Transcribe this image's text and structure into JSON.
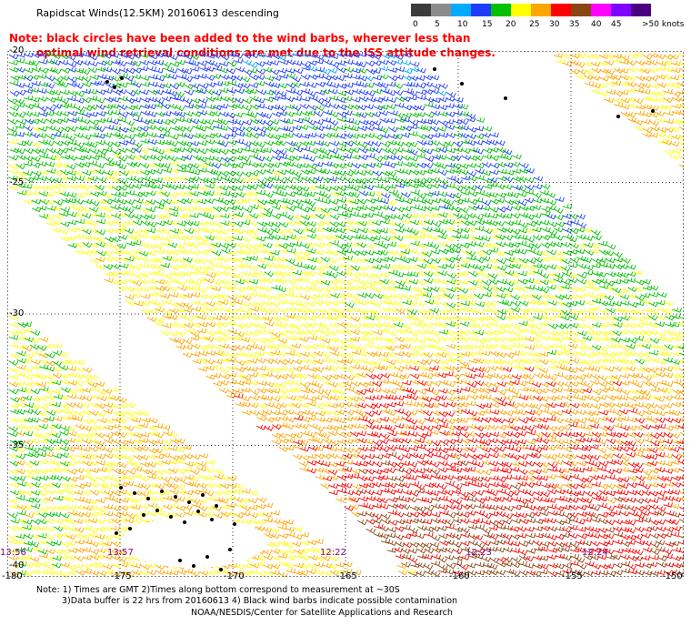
{
  "title": "Rapidscat Winds(12.5KM) 20160613 descending",
  "note": {
    "line1": "Note: black circles have been added to the wind barbs, wherever less than",
    "line2": "optimal wind retrieval conditions are met due to the ISS attitude changes."
  },
  "legend": {
    "colors": [
      "#3c3c3c",
      "#8c8c8c",
      "#00aaff",
      "#1e3cff",
      "#00c000",
      "#ffff00",
      "#ffa500",
      "#ff0000",
      "#8b4513",
      "#ff00ff",
      "#7f00ff",
      "#4b0082"
    ],
    "labels": [
      "0",
      "5",
      "10",
      "15",
      "20",
      "25",
      "30",
      "35",
      "40",
      "45",
      ">50 knots"
    ]
  },
  "axes": {
    "lat_labels": [
      "-20",
      "-25",
      "-30",
      "-35",
      "-40"
    ],
    "lon_labels": [
      "-180",
      "-175",
      "-170",
      "-165",
      "-160",
      "-155",
      "-150"
    ]
  },
  "time_labels": [
    "13:56",
    "13:57",
    "12:22",
    "12:23",
    "12:24"
  ],
  "footer": {
    "line1": "Note: 1) Times are GMT 2)Times along bottom correspond to measurement at ~30S",
    "line2": "3)Data buffer is 22 hrs from 20160613 4) Black wind barbs indicate possible contamination",
    "line3": "NOAA/NESDIS/Center for Satellite Applications and Research"
  }
}
